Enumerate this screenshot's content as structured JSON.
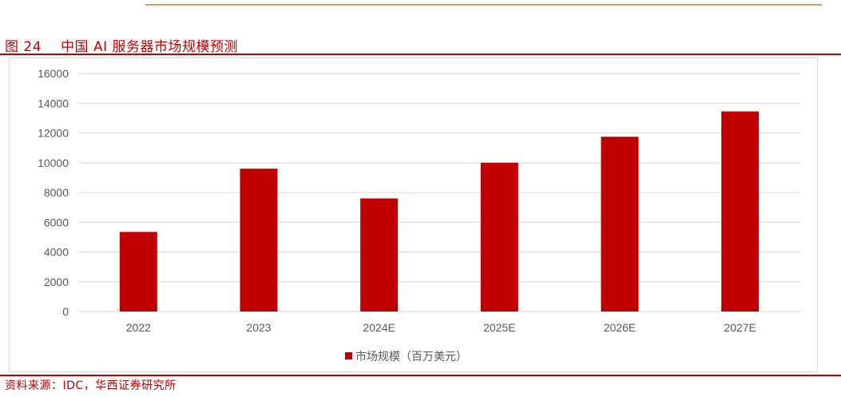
{
  "figure": {
    "number": "图 24",
    "title": "中国 AI 服务器市场规模预测"
  },
  "source": "资料来源：IDC，华西证券研究所",
  "colors": {
    "bar": "#c00000",
    "accent": "#c00000",
    "top_rule": "#c8a063",
    "grid": "#d9d9d9",
    "axis_text": "#595959"
  },
  "chart_data": {
    "type": "bar",
    "categories": [
      "2022",
      "2023",
      "2024E",
      "2025E",
      "2026E",
      "2027E"
    ],
    "series": [
      {
        "name": "市场规模（百万美元）",
        "values": [
          5350,
          9600,
          7600,
          10000,
          11750,
          13450
        ]
      }
    ],
    "yticks": [
      "0",
      "2000",
      "4000",
      "6000",
      "8000",
      "10000",
      "12000",
      "14000",
      "16000"
    ],
    "ylim": [
      0,
      16000
    ],
    "grid": true,
    "legend_position": "bottom"
  }
}
